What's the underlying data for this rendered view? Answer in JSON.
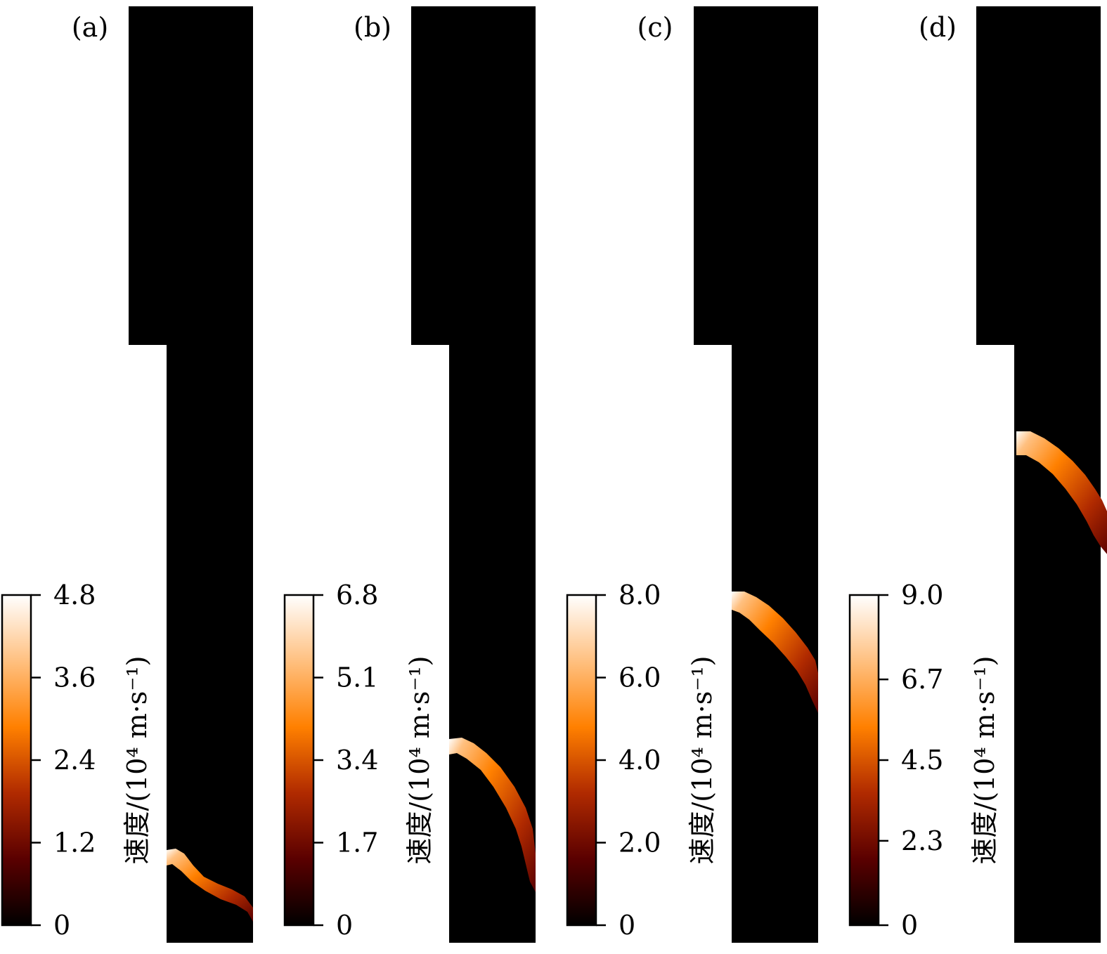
{
  "chart_data": {
    "type": "heatmap",
    "colormap": "black-red-orange-white",
    "colormap_stops": [
      "#000000",
      "#5a0000",
      "#b02a00",
      "#ff8000",
      "#ffc080",
      "#ffffff"
    ],
    "background_color": "#000000",
    "panels": [
      {
        "label": "(a)",
        "colorbar": {
          "label": "速度/(10⁴ m·s⁻¹)",
          "range": [
            0,
            4.8
          ],
          "ticks": [
            0,
            1.2,
            2.4,
            3.6,
            4.8
          ],
          "tick_labels": [
            "0",
            "1.2",
            "2.4",
            "3.6",
            "4.8"
          ]
        },
        "front_peak_value": 4.8
      },
      {
        "label": "(b)",
        "colorbar": {
          "label": "速度/(10⁴ m·s⁻¹)",
          "range": [
            0,
            6.8
          ],
          "ticks": [
            0,
            1.7,
            3.4,
            5.1,
            6.8
          ],
          "tick_labels": [
            "0",
            "1.7",
            "3.4",
            "5.1",
            "6.8"
          ]
        },
        "front_peak_value": 6.8
      },
      {
        "label": "(c)",
        "colorbar": {
          "label": "速度/(10⁴ m·s⁻¹)",
          "range": [
            0,
            8.0
          ],
          "ticks": [
            0,
            2.0,
            4.0,
            6.0,
            8.0
          ],
          "tick_labels": [
            "0",
            "2.0",
            "4.0",
            "6.0",
            "8.0"
          ]
        },
        "front_peak_value": 8.0
      },
      {
        "label": "(d)",
        "colorbar": {
          "label": "速度/(10⁴ m·s⁻¹)",
          "range": [
            0,
            9.0
          ],
          "ticks": [
            0,
            2.3,
            4.5,
            6.7,
            9.0
          ],
          "tick_labels": [
            "0",
            "2.3",
            "4.5",
            "6.7",
            "9.0"
          ]
        },
        "front_peak_value": 9.0
      }
    ]
  }
}
